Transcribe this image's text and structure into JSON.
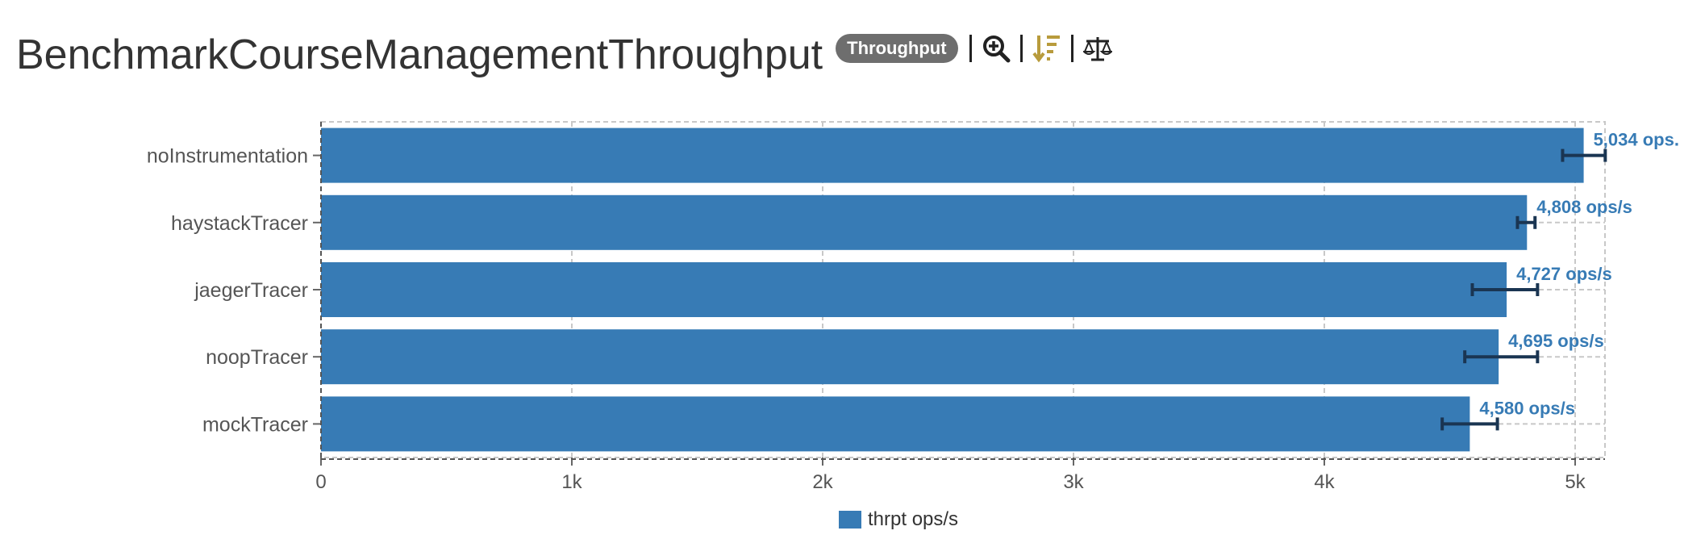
{
  "header": {
    "title": "BenchmarkCourseManagementThroughput",
    "badge": "Throughput",
    "icons": [
      "zoom-in-icon",
      "sort-descending-icon",
      "balance-scale-icon"
    ]
  },
  "colors": {
    "bar": "#377bb5",
    "error_bar": "#1a3552",
    "value_label": "#377bb5",
    "sort_icon": "#b89b3c",
    "grid": "#c8c8c8"
  },
  "legend": {
    "label": "thrpt ops/s"
  },
  "chart_data": {
    "type": "bar",
    "orientation": "horizontal",
    "categories": [
      "noInstrumentation",
      "haystackTracer",
      "jaegerTracer",
      "noopTracer",
      "mockTracer"
    ],
    "series": [
      {
        "name": "thrpt ops/s",
        "values": [
          5034,
          4808,
          4727,
          4695,
          4580
        ],
        "error_low": [
          4950,
          4770,
          4590,
          4560,
          4470
        ],
        "error_high": [
          5120,
          4840,
          4850,
          4850,
          4690
        ],
        "labels": [
          "5,034 ops.",
          "4,808 ops/s",
          "4,727 ops/s",
          "4,695 ops/s",
          "4,580 ops/s"
        ]
      }
    ],
    "xlim": [
      0,
      5120
    ],
    "x_ticks": [
      0,
      1000,
      2000,
      3000,
      4000,
      5000
    ],
    "x_tick_labels": [
      "0",
      "1k",
      "2k",
      "3k",
      "4k",
      "5k"
    ],
    "grid": true,
    "legend_position": "bottom"
  }
}
